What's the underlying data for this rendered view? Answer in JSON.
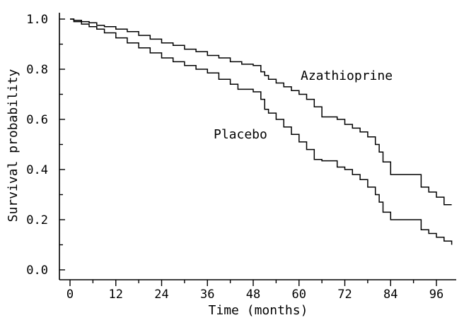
{
  "chart_data": {
    "type": "line",
    "title": "",
    "xlabel": "Time (months)",
    "ylabel": "Survival probability",
    "xlim": [
      0,
      100
    ],
    "ylim": [
      0,
      1.0
    ],
    "x_ticks": [
      0,
      12,
      24,
      36,
      48,
      60,
      72,
      84,
      96
    ],
    "x_tick_labels": [
      "0",
      "12",
      "24",
      "36",
      "48",
      "60",
      "72",
      "84",
      "96"
    ],
    "y_ticks": [
      0,
      0.2,
      0.4,
      0.6,
      0.8,
      1.0
    ],
    "y_tick_labels": [
      "0.0",
      "0.2",
      "0.4",
      "0.6",
      "0.8",
      "1.0"
    ],
    "grid": false,
    "line_style": "step",
    "line_color": "#000000",
    "series": [
      {
        "name": "Azathioprine",
        "x": [
          0,
          1,
          3,
          5,
          7,
          9,
          12,
          15,
          18,
          21,
          24,
          27,
          30,
          33,
          36,
          39,
          42,
          45,
          48,
          50,
          51,
          52,
          54,
          56,
          58,
          60,
          62,
          64,
          66,
          70,
          72,
          74,
          76,
          78,
          80,
          81,
          82,
          84,
          90,
          92,
          94,
          96,
          98,
          100
        ],
        "y": [
          1.0,
          0.995,
          0.99,
          0.985,
          0.975,
          0.97,
          0.96,
          0.95,
          0.935,
          0.92,
          0.905,
          0.895,
          0.88,
          0.87,
          0.855,
          0.845,
          0.83,
          0.82,
          0.815,
          0.79,
          0.775,
          0.76,
          0.745,
          0.73,
          0.715,
          0.7,
          0.68,
          0.65,
          0.61,
          0.6,
          0.58,
          0.565,
          0.55,
          0.53,
          0.5,
          0.47,
          0.43,
          0.38,
          0.38,
          0.33,
          0.31,
          0.29,
          0.26,
          0.26
        ]
      },
      {
        "name": "Placebo",
        "x": [
          0,
          1,
          3,
          5,
          7,
          9,
          12,
          15,
          18,
          21,
          24,
          27,
          30,
          33,
          36,
          39,
          42,
          44,
          48,
          50,
          51,
          52,
          54,
          56,
          58,
          60,
          62,
          64,
          66,
          70,
          72,
          74,
          76,
          78,
          80,
          81,
          82,
          84,
          90,
          92,
          94,
          96,
          98,
          100
        ],
        "y": [
          1.0,
          0.99,
          0.98,
          0.97,
          0.96,
          0.945,
          0.925,
          0.905,
          0.885,
          0.865,
          0.845,
          0.83,
          0.815,
          0.8,
          0.785,
          0.76,
          0.74,
          0.72,
          0.71,
          0.68,
          0.64,
          0.625,
          0.6,
          0.57,
          0.54,
          0.51,
          0.48,
          0.44,
          0.435,
          0.41,
          0.4,
          0.38,
          0.36,
          0.33,
          0.3,
          0.27,
          0.23,
          0.2,
          0.2,
          0.16,
          0.145,
          0.13,
          0.115,
          0.1
        ]
      }
    ]
  }
}
